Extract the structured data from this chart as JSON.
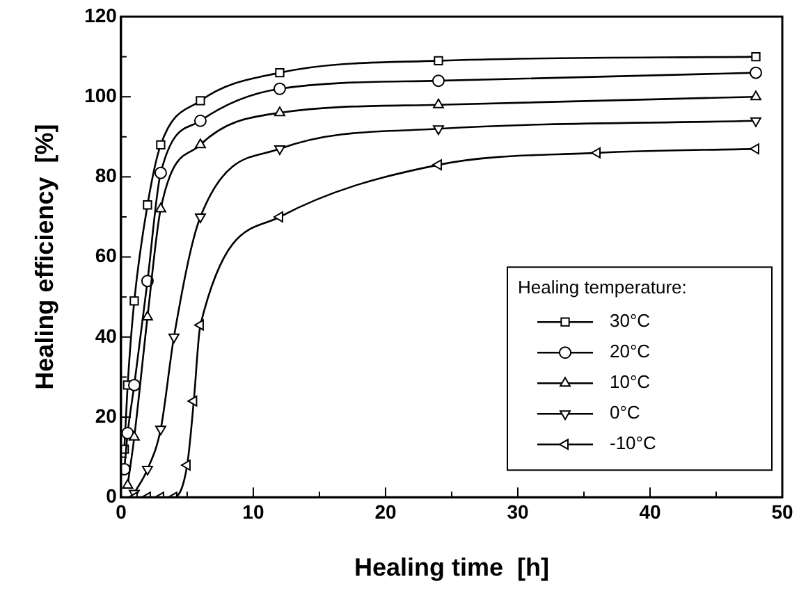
{
  "chart_data": {
    "type": "line",
    "xlabel": "Healing time  [h]",
    "ylabel": "Healing efficiency  [%]",
    "legend_title": "Healing temperature:",
    "xlim": [
      0,
      50
    ],
    "xticks": [
      0,
      {
        "value": 5,
        "label": null
      },
      10,
      {
        "value": 15,
        "label": null
      },
      20,
      {
        "value": 25,
        "label": null
      },
      30,
      {
        "value": 35,
        "label": null
      },
      40,
      {
        "value": 45,
        "label": null
      },
      50
    ],
    "ylim": [
      0,
      120
    ],
    "yticks": [
      0,
      {
        "value": 10,
        "label": null
      },
      20,
      {
        "value": 30,
        "label": null
      },
      40,
      {
        "value": 50,
        "label": null
      },
      60,
      {
        "value": 70,
        "label": null
      },
      80,
      {
        "value": 90,
        "label": null
      },
      100,
      {
        "value": 110,
        "label": null
      },
      120
    ],
    "grid": false,
    "legend": "bottom right",
    "line_style": "solid",
    "series": [
      {
        "name": "30°C",
        "color": "#000000",
        "marker": "square",
        "x": [
          0.25,
          0.5,
          1,
          2,
          3,
          6,
          12,
          24,
          48
        ],
        "values": [
          12,
          28,
          49,
          73,
          88,
          99,
          106,
          109,
          110
        ]
      },
      {
        "name": "20°C",
        "color": "#000000",
        "marker": "circle",
        "x": [
          0.25,
          0.5,
          1,
          2,
          3,
          6,
          12,
          24,
          48
        ],
        "values": [
          7,
          16,
          28,
          54,
          81,
          94,
          102,
          104,
          106
        ]
      },
      {
        "name": "10°C",
        "color": "#000000",
        "marker": "triangle",
        "x": [
          0.5,
          1,
          2,
          3,
          6,
          12,
          24,
          48
        ],
        "values": [
          3,
          15,
          45,
          72,
          88,
          96,
          98,
          100
        ]
      },
      {
        "name": "0°C",
        "color": "#000000",
        "marker": "triangle-down",
        "x": [
          1,
          2,
          3,
          4,
          6,
          12,
          24,
          48
        ],
        "values": [
          1,
          7,
          17,
          40,
          70,
          87,
          92,
          94
        ]
      },
      {
        "name": "-10°C",
        "color": "#000000",
        "marker": "triangle-left",
        "x": [
          1,
          2,
          3,
          4,
          5,
          5.5,
          6,
          12,
          24,
          36,
          48
        ],
        "values": [
          0,
          0,
          0,
          0,
          8,
          24,
          43,
          70,
          83,
          86,
          87
        ]
      }
    ]
  }
}
